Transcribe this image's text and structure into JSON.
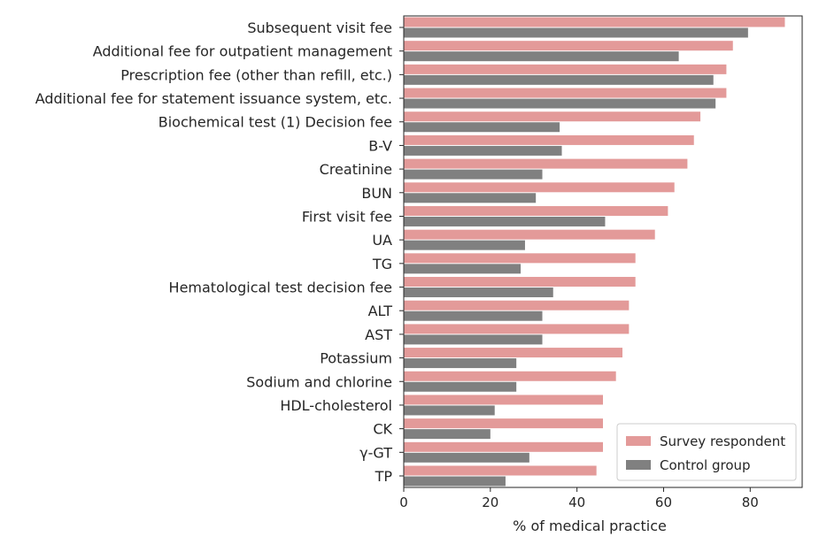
{
  "chart_data": {
    "type": "bar",
    "orientation": "horizontal",
    "categories": [
      "Subsequent visit fee",
      "Additional fee for outpatient management",
      "Prescription fee (other than refill, etc.)",
      "Additional fee for statement issuance system, etc.",
      "Biochemical test (1) Decision fee",
      "B-V",
      "Creatinine",
      "BUN",
      "First visit fee",
      "UA",
      "TG",
      "Hematological test decision fee",
      "ALT",
      "AST",
      "Potassium",
      "Sodium and chlorine",
      "HDL-cholesterol",
      "CK",
      "γ-GT",
      "TP"
    ],
    "series": [
      {
        "name": "Survey respondent",
        "color": "#e39a99",
        "values": [
          88,
          76,
          74.5,
          74.5,
          68.5,
          67,
          65.5,
          62.5,
          61,
          58,
          53.5,
          53.5,
          52,
          52,
          50.5,
          49,
          46,
          46,
          46,
          44.5
        ]
      },
      {
        "name": "Control group",
        "color": "#808080",
        "values": [
          79.5,
          63.5,
          71.5,
          72,
          36,
          36.5,
          32,
          30.5,
          46.5,
          28,
          27,
          34.5,
          32,
          32,
          26,
          26,
          21,
          20,
          29,
          23.5
        ]
      }
    ],
    "xlabel": "% of medical practice",
    "ylabel": "",
    "xlim": [
      0,
      92
    ],
    "xticks": [
      0,
      20,
      40,
      60,
      80
    ],
    "grid": false,
    "legend": {
      "position": "bottom-right"
    }
  }
}
